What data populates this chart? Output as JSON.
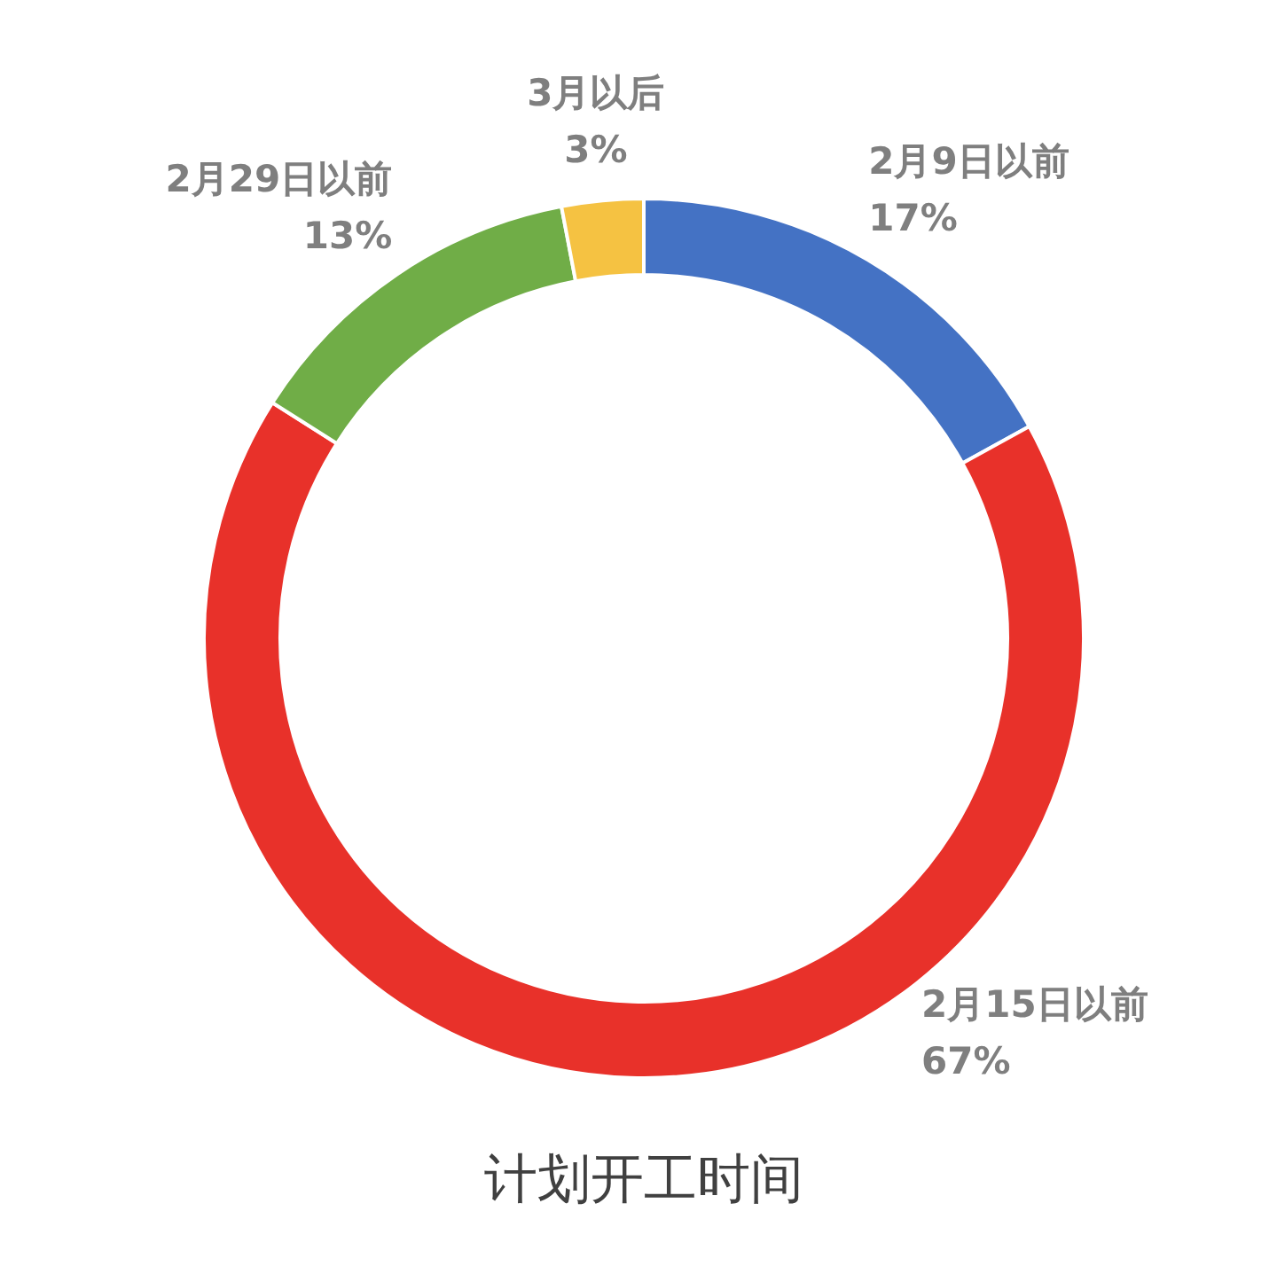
{
  "chart_data": {
    "type": "donut",
    "title": "计划开工时间",
    "categories": [
      "2月9日以前",
      "2月15日以前",
      "2月29日以前",
      "3月以后"
    ],
    "values": [
      17,
      67,
      13,
      3
    ],
    "colors": [
      "#4472c4",
      "#e8312a",
      "#70ad47",
      "#f5c242"
    ],
    "value_labels": [
      "17%",
      "67%",
      "13%",
      "3%"
    ]
  }
}
